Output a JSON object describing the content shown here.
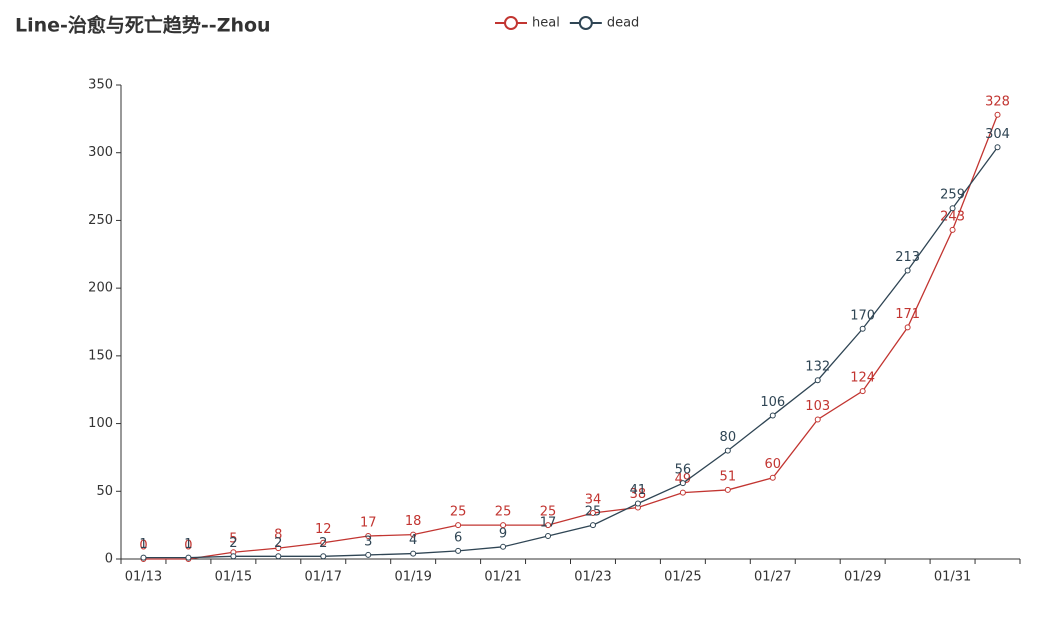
{
  "chart_data": {
    "type": "line",
    "title": "Line-治愈与死亡趋势--Zhou",
    "categories": [
      "01/13",
      null,
      "01/15",
      null,
      "01/17",
      null,
      "01/19",
      null,
      "01/21",
      null,
      "01/23",
      null,
      "01/25",
      null,
      "01/27",
      null,
      "01/29",
      null,
      "01/31",
      null
    ],
    "series": [
      {
        "name": "heal",
        "color": "#c23531",
        "values": [
          0,
          0,
          5,
          8,
          12,
          17,
          18,
          25,
          25,
          25,
          34,
          38,
          49,
          51,
          60,
          103,
          124,
          171,
          243,
          328
        ]
      },
      {
        "name": "dead",
        "color": "#2f4554",
        "values": [
          1,
          1,
          2,
          2,
          2,
          3,
          4,
          6,
          9,
          17,
          25,
          41,
          56,
          80,
          106,
          132,
          170,
          213,
          259,
          304
        ]
      }
    ],
    "ylim": [
      0,
      350
    ],
    "yticks": [
      0,
      50,
      100,
      150,
      200,
      250,
      300,
      350
    ],
    "legend": "top"
  }
}
